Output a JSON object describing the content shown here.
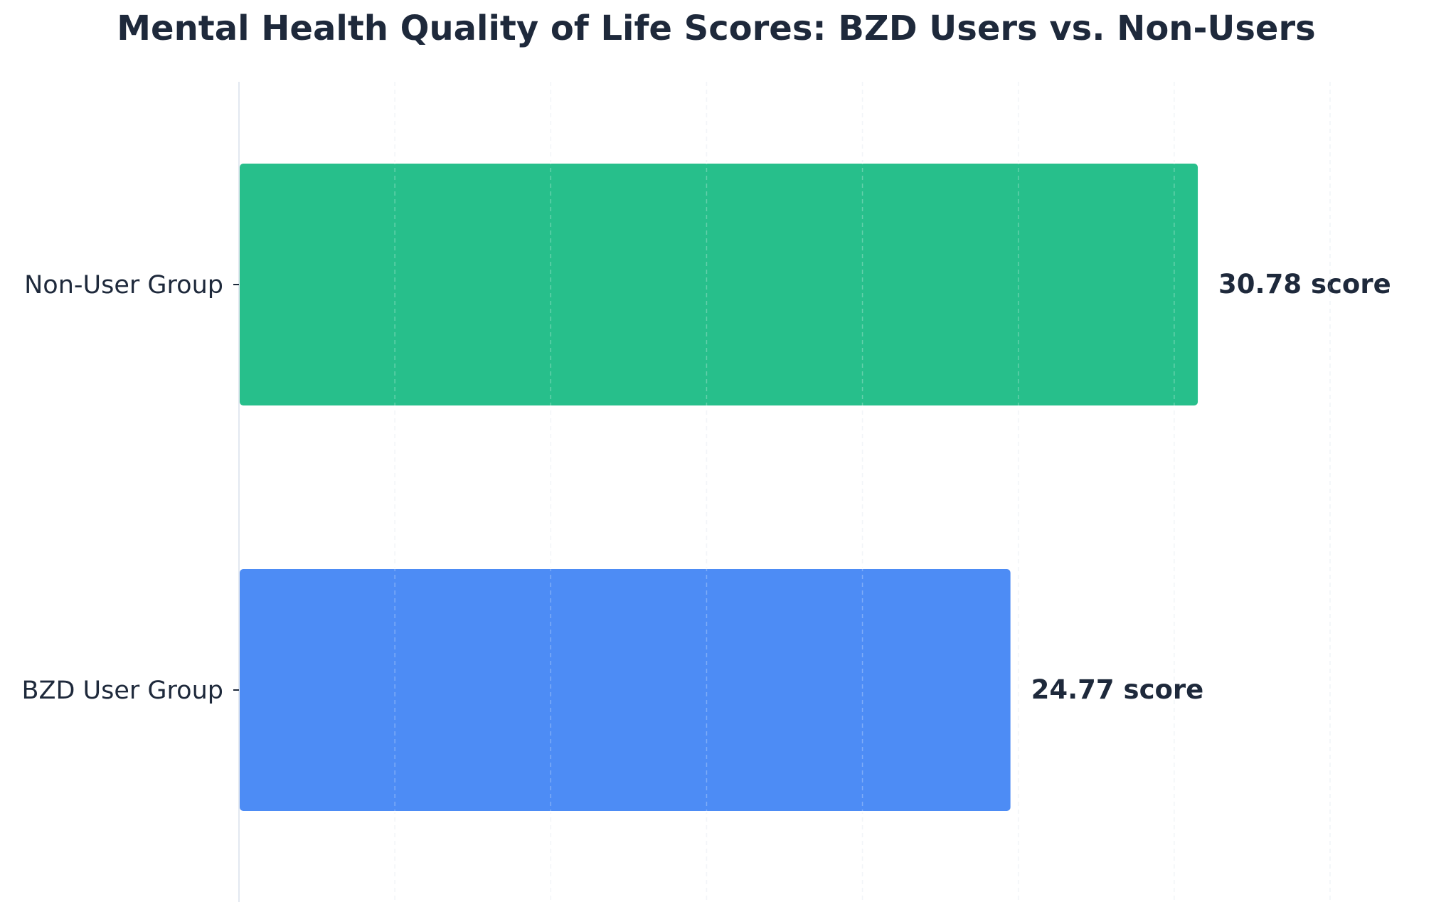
{
  "chart_data": {
    "type": "bar",
    "orientation": "horizontal",
    "title": "Mental Health Quality of Life Scores: BZD Users vs. Non-Users",
    "xlabel": "",
    "ylabel": "",
    "categories": [
      "Non-User Group",
      "BZD User Group"
    ],
    "values": [
      30.78,
      24.77
    ],
    "value_labels": [
      "30.78 score",
      "24.77 score"
    ],
    "colors": [
      "#27bf8b",
      "#4d8cf5"
    ],
    "xlim": [
      0,
      35
    ],
    "grid": "vertical dashed",
    "legend": "none",
    "text_color": "#1e293b",
    "axis_color": "#e2e8f0"
  }
}
